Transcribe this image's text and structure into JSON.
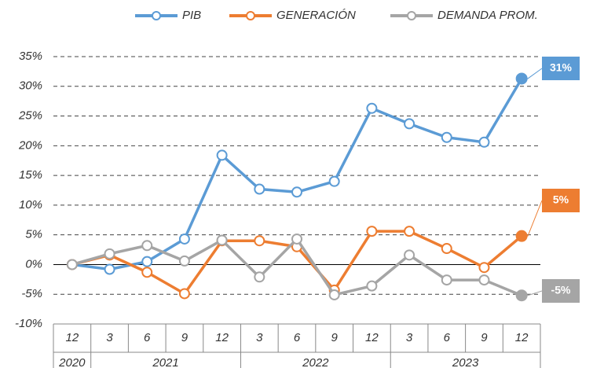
{
  "chart_data": {
    "type": "line",
    "categories": [
      "12",
      "3",
      "6",
      "9",
      "12",
      "3",
      "6",
      "9",
      "12",
      "3",
      "6",
      "9",
      "12"
    ],
    "groups": [
      {
        "label": "2020",
        "size": 1
      },
      {
        "label": "2021",
        "size": 4
      },
      {
        "label": "2022",
        "size": 4
      },
      {
        "label": "2023",
        "size": 4
      }
    ],
    "series": [
      {
        "name": "PIB",
        "color": "#5b9bd5",
        "values": [
          0,
          -0.8,
          0.5,
          4.3,
          18.4,
          12.7,
          12.2,
          14.0,
          26.3,
          23.7,
          21.4,
          20.6,
          31.3
        ],
        "value_labels": [
          null,
          null,
          null,
          null,
          null,
          null,
          null,
          null,
          null,
          null,
          null,
          null,
          "31%"
        ]
      },
      {
        "name": "GENERACIÓN",
        "color": "#ed7d31",
        "values": [
          0,
          1.6,
          -1.3,
          -4.9,
          4.0,
          4.0,
          3.0,
          -4.3,
          5.6,
          5.6,
          2.7,
          -0.5,
          4.8
        ],
        "value_labels": [
          null,
          null,
          null,
          null,
          null,
          null,
          null,
          null,
          null,
          null,
          null,
          null,
          "5%"
        ]
      },
      {
        "name": "DEMANDA PROM.",
        "color": "#a5a5a5",
        "values": [
          0,
          1.8,
          3.2,
          0.6,
          4.1,
          -2.1,
          4.3,
          -5.1,
          -3.6,
          1.6,
          -2.6,
          -2.6,
          -5.2
        ],
        "value_labels": [
          null,
          null,
          null,
          null,
          null,
          null,
          null,
          null,
          null,
          null,
          null,
          null,
          "-5%"
        ]
      }
    ],
    "ylim": [
      -10,
      35
    ],
    "yticks": [
      {
        "value": -10,
        "label": "-10%"
      },
      {
        "value": -5,
        "label": "-5%"
      },
      {
        "value": 0,
        "label": "0%"
      },
      {
        "value": 5,
        "label": "5%"
      },
      {
        "value": 10,
        "label": "10%"
      },
      {
        "value": 15,
        "label": "15%"
      },
      {
        "value": 20,
        "label": "20%"
      },
      {
        "value": 25,
        "label": "25%"
      },
      {
        "value": 30,
        "label": "30%"
      },
      {
        "value": 35,
        "label": "35%"
      }
    ],
    "grid": true,
    "legend": "top"
  }
}
